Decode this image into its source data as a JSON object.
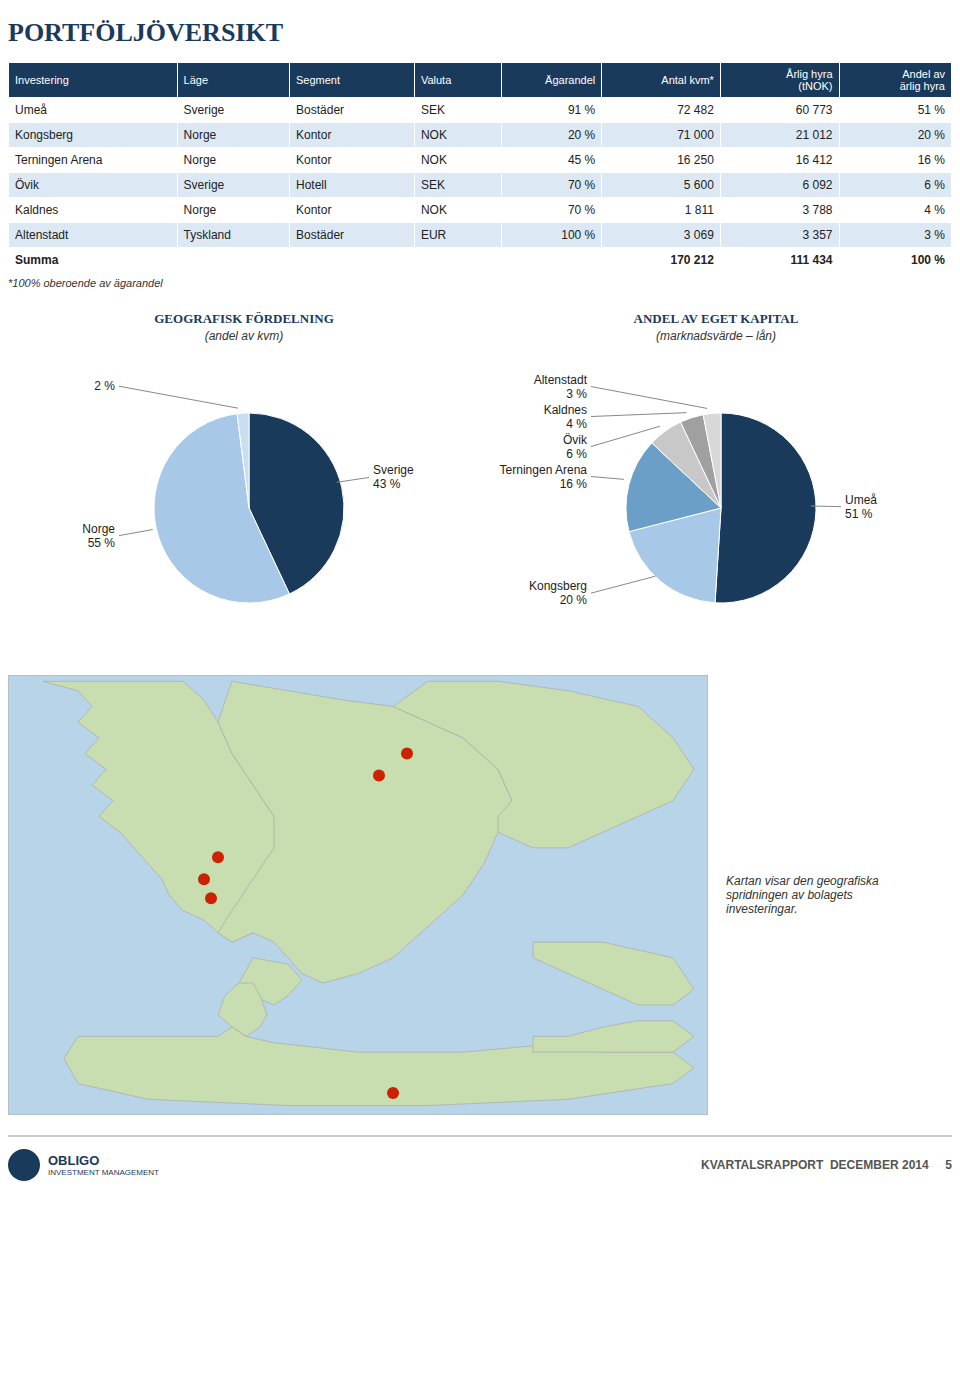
{
  "title": "PORTFÖLJÖVERSIKT",
  "title_color": "#1a3a5c",
  "table": {
    "headers": [
      "Investering",
      "Läge",
      "Segment",
      "Valuta",
      "Ägarandel",
      "Antal kvm*",
      "Årlig hyra\n(tNOK)",
      "Andel av\närlig hyra"
    ],
    "rows": [
      [
        "Umeå",
        "Sverige",
        "Bostäder",
        "SEK",
        "91 %",
        "72 482",
        "60 773",
        "51 %"
      ],
      [
        "Kongsberg",
        "Norge",
        "Kontor",
        "NOK",
        "20 %",
        "71 000",
        "21 012",
        "20 %"
      ],
      [
        "Terningen Arena",
        "Norge",
        "Kontor",
        "NOK",
        "45 %",
        "16 250",
        "16 412",
        "16 %"
      ],
      [
        "Övik",
        "Sverige",
        "Hotell",
        "SEK",
        "70 %",
        "5 600",
        "6 092",
        "6 %"
      ],
      [
        "Kaldnes",
        "Norge",
        "Kontor",
        "NOK",
        "70 %",
        "1 811",
        "3 788",
        "4 %"
      ],
      [
        "Altenstadt",
        "Tyskland",
        "Bostäder",
        "EUR",
        "100 %",
        "3 069",
        "3 357",
        "3 %"
      ]
    ],
    "summary": [
      "Summa",
      null,
      null,
      null,
      null,
      "170 212",
      "111 434",
      "100 %"
    ],
    "footnote": "*100% oberoende av ägarandel",
    "header_color": "#1a3a5c",
    "header_text_color": "#ffffff",
    "row_colors": [
      "#ffffff",
      "#dce9f5",
      "#ffffff",
      "#dce9f5",
      "#ffffff",
      "#dce9f5"
    ]
  },
  "chart_data": [
    {
      "type": "pie",
      "title": "GEOGRAFISK FÖRDELNING",
      "subtitle": "(andel av kvm)",
      "categories": [
        "Sverige",
        "Norge",
        null
      ],
      "values": [
        43,
        55,
        2
      ],
      "value_labels": [
        "43 %",
        "55 %",
        "2 %"
      ],
      "data_labels": true,
      "colors": [
        "#1a3a5c",
        "#a8c8e8",
        "#c8dff0"
      ]
    },
    {
      "type": "pie",
      "title": "ANDEL AV EGET KAPITAL",
      "subtitle": "(marknadsvärde – lån)",
      "categories": [
        "Umeå",
        "Kongsberg",
        "Terningen Arena",
        "Övik",
        "Kaldnes",
        "Altenstadt"
      ],
      "values": [
        51,
        20,
        16,
        6,
        4,
        3
      ],
      "value_labels": [
        "51 %",
        "20 %",
        "16 %",
        "6 %",
        "4 %",
        "3 %"
      ],
      "data_labels": true,
      "colors": [
        "#1a3a5c",
        "#a8c8e8",
        "#6b9fc8",
        "#c8c8c8",
        "#a0a0a0",
        "#d8d8d8"
      ]
    }
  ],
  "map": {
    "caption": "Kartan visar den geografiska\nspridningen av bolagets\ninvesteringar.",
    "background_color": "#b8d4e8",
    "land_color": "#c8ddb0",
    "dot_color": "#cc2200"
  },
  "footer": {
    "logo": [
      "OBLIGO",
      "INVESTMENT MANAGEMENT"
    ],
    "text": "KVARTALSRAPPORT  DECEMBER 2014     5"
  }
}
